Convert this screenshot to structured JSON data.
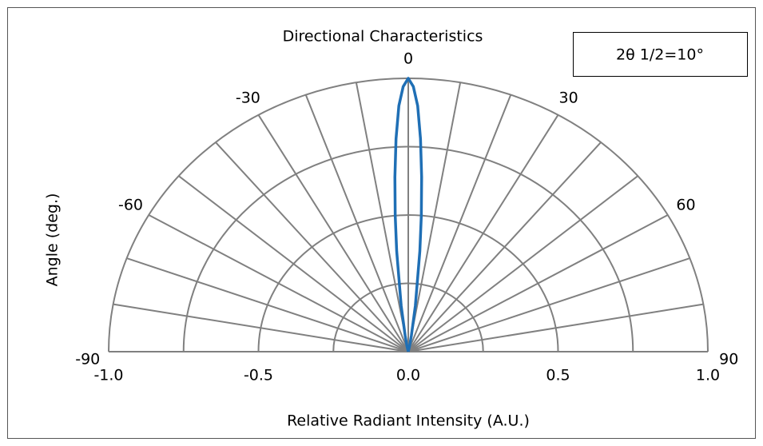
{
  "chart_data": {
    "type": "polar",
    "title": "Directional Characteristics",
    "annotation": "2θ 1/2=10°",
    "xlabel": "Relative Radiant Intensity (A.U.)",
    "ylabel": "Angle (deg.)",
    "rlim": [
      0,
      1
    ],
    "rgrid": [
      0.25,
      0.5,
      0.75,
      1
    ],
    "theta_grid": [
      -90,
      -80,
      -70,
      -60,
      -50,
      -40,
      -30,
      -20,
      -10,
      0,
      10,
      20,
      30,
      40,
      50,
      60,
      70,
      80,
      90
    ],
    "thetaticks": [
      -90,
      -60,
      -30,
      0,
      30,
      60,
      90
    ],
    "xlim": [
      -1,
      1
    ],
    "xticks": [
      {
        "value": -1,
        "label": "-1.0"
      },
      -0.5,
      {
        "value": 0,
        "label": "0.0"
      },
      0.5,
      {
        "value": 1,
        "label": "1.0"
      }
    ],
    "series": [
      {
        "color": "#1f6fb5",
        "angles": [
          -15,
          -12,
          -10,
          -8,
          -6,
          -5,
          -4,
          -3,
          -2,
          -1,
          0,
          1,
          2,
          3,
          4,
          5,
          6,
          8,
          10,
          12,
          15
        ],
        "values": [
          0,
          0.02,
          0.06,
          0.17,
          0.37,
          0.5,
          0.64,
          0.78,
          0.9,
          0.97,
          1,
          0.97,
          0.9,
          0.78,
          0.64,
          0.5,
          0.37,
          0.17,
          0.06,
          0.02,
          0
        ]
      }
    ]
  }
}
